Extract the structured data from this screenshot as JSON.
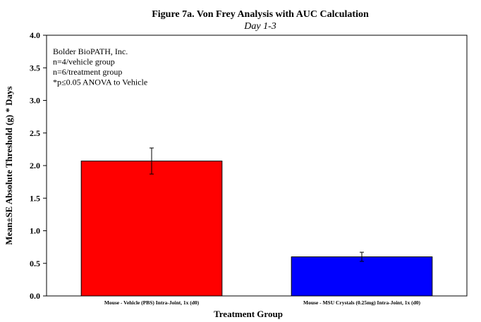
{
  "chart_data": {
    "type": "bar",
    "title": "Figure 7a.  Von Frey Analysis with AUC Calculation",
    "subtitle": "Day 1-3",
    "xlabel": "Treatment Group",
    "ylabel": "Mean±SE Absolute Threshold (g) * Days",
    "ylim": [
      0,
      4.0
    ],
    "yticks": [
      0.0,
      0.5,
      1.0,
      1.5,
      2.0,
      2.5,
      3.0,
      3.5,
      4.0
    ],
    "ytick_labels": [
      "0.0",
      "0.5",
      "1.0",
      "1.5",
      "2.0",
      "2.5",
      "3.0",
      "3.5",
      "4.0"
    ],
    "categories": [
      "Mouse - Vehicle (PBS) Intra-Joint, 1x (d0)",
      "Mouse - MSU Crystals (0.25mg) Intra-Joint, 1x (d0)"
    ],
    "values": [
      2.07,
      0.6
    ],
    "errors": [
      0.2,
      0.07
    ],
    "colors": [
      "#ff0000",
      "#0000ff"
    ],
    "grid": false,
    "annotations": [
      "Bolder BioPATH, Inc.",
      "n=4/vehicle group",
      "n=6/treatment group",
      "*p≤0.05 ANOVA to Vehicle"
    ]
  }
}
